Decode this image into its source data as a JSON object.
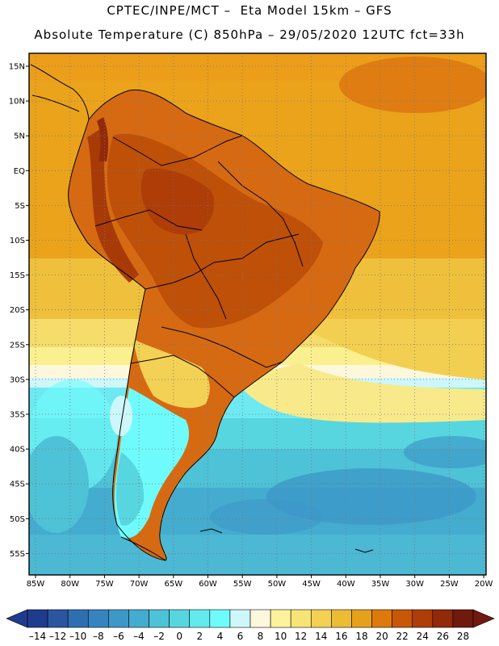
{
  "header": {
    "line1": "CPTEC/INPE/MCT –  Eta Model 15km – GFS",
    "line2": "Absolute Temperature (C) 850hPa – 29/05/2020 12UTC fct=33h"
  },
  "map": {
    "lat_labels": [
      "15N",
      "10N",
      "5N",
      "EQ",
      "5S",
      "10S",
      "15S",
      "20S",
      "25S",
      "30S",
      "35S",
      "40S",
      "45S",
      "50S",
      "55S"
    ],
    "lon_labels": [
      "85W",
      "80W",
      "75W",
      "70W",
      "65W",
      "60W",
      "55W",
      "50W",
      "45W",
      "40W",
      "35W",
      "30W",
      "25W",
      "20W"
    ],
    "grid": true
  },
  "colorbar": {
    "values": [
      "-14",
      "-12",
      "-10",
      "-8",
      "-6",
      "-4",
      "-2",
      "0",
      "2",
      "4",
      "6",
      "8",
      "10",
      "12",
      "14",
      "16",
      "18",
      "20",
      "22",
      "24",
      "26",
      "28"
    ],
    "colors": [
      "#1f3b8e",
      "#2a56a0",
      "#2f6fb0",
      "#3684bf",
      "#3d98c8",
      "#44accf",
      "#4ec2d6",
      "#58d6e0",
      "#63eaee",
      "#6ffbfb",
      "#cdf7fb",
      "#fdf7dc",
      "#fdf39d",
      "#f7e476",
      "#f2d154",
      "#ecbc34",
      "#e6a11c",
      "#dd7a0b",
      "#c85708",
      "#ae3d07",
      "#92290a",
      "#6f1a0d"
    ]
  }
}
